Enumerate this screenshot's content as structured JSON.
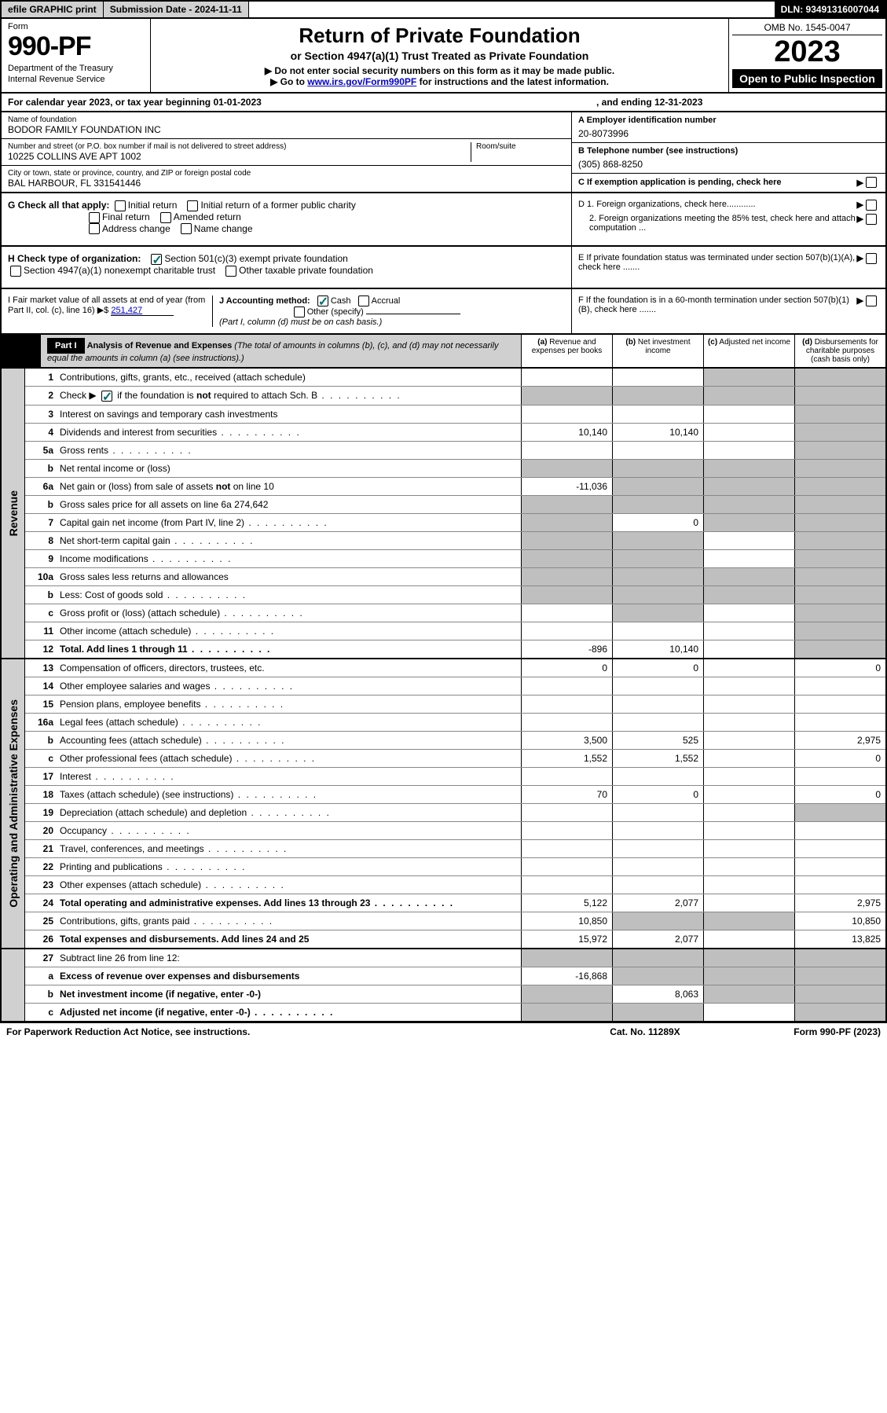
{
  "top_bar": {
    "efile": "efile GRAPHIC print",
    "submission": "Submission Date - 2024-11-11",
    "dln": "DLN: 93491316007044"
  },
  "header": {
    "form_label": "Form",
    "form_number": "990-PF",
    "dept1": "Department of the Treasury",
    "dept2": "Internal Revenue Service",
    "title": "Return of Private Foundation",
    "subtitle": "or Section 4947(a)(1) Trust Treated as Private Foundation",
    "note1": "▶ Do not enter social security numbers on this form as it may be made public.",
    "note2_prefix": "▶ Go to ",
    "note2_link": "www.irs.gov/Form990PF",
    "note2_suffix": " for instructions and the latest information.",
    "omb": "OMB No. 1545-0047",
    "year": "2023",
    "open": "Open to Public Inspection"
  },
  "calendar": {
    "text_a": "For calendar year 2023, or tax year beginning 01-01-2023",
    "text_b": ", and ending 12-31-2023"
  },
  "info": {
    "name_label": "Name of foundation",
    "name_value": "BODOR FAMILY FOUNDATION INC",
    "addr_label": "Number and street (or P.O. box number if mail is not delivered to street address)",
    "addr_value": "10225 COLLINS AVE APT 1002",
    "room_label": "Room/suite",
    "city_label": "City or town, state or province, country, and ZIP or foreign postal code",
    "city_value": "BAL HARBOUR, FL  331541446",
    "ein_label": "A Employer identification number",
    "ein_value": "20-8073996",
    "phone_label": "B Telephone number (see instructions)",
    "phone_value": "(305) 868-8250",
    "c_label": "C If exemption application is pending, check here"
  },
  "checks": {
    "g_label": "G Check all that apply:",
    "g_opts": [
      "Initial return",
      "Initial return of a former public charity",
      "Final return",
      "Amended return",
      "Address change",
      "Name change"
    ],
    "h_label": "H Check type of organization:",
    "h_opt1": "Section 501(c)(3) exempt private foundation",
    "h_opt2": "Section 4947(a)(1) nonexempt charitable trust",
    "h_opt3": "Other taxable private foundation",
    "i_label": "I Fair market value of all assets at end of year (from Part II, col. (c), line 16) ▶$",
    "i_value": "251,427",
    "j_label": "J Accounting method:",
    "j_opt1": "Cash",
    "j_opt2": "Accrual",
    "j_opt3": "Other (specify)",
    "j_note": "(Part I, column (d) must be on cash basis.)",
    "d1": "D 1. Foreign organizations, check here............",
    "d2": "2. Foreign organizations meeting the 85% test, check here and attach computation ...",
    "e": "E  If private foundation status was terminated under section 507(b)(1)(A), check here .......",
    "f": "F  If the foundation is in a 60-month termination under section 507(b)(1)(B), check here ......."
  },
  "part1": {
    "label": "Part I",
    "title": "Analysis of Revenue and Expenses",
    "title_sub": "(The total of amounts in columns (b), (c), and (d) may not necessarily equal the amounts in column (a) (see instructions).)",
    "col_a": "(a) Revenue and expenses per books",
    "col_b": "(b) Net investment income",
    "col_c": "(c) Adjusted net income",
    "col_d": "(d) Disbursements for charitable purposes (cash basis only)"
  },
  "sections": {
    "revenue": "Revenue",
    "expenses": "Operating and Administrative Expenses"
  },
  "lines": [
    {
      "num": "1",
      "desc": "Contributions, gifts, grants, etc., received (attach schedule)",
      "a": "",
      "b": "",
      "c": "s",
      "d": "s"
    },
    {
      "num": "2",
      "desc": "Check ▶ ☑ if the foundation is not required to attach Sch. B",
      "a": "s",
      "b": "s",
      "c": "s",
      "d": "s",
      "dots": true
    },
    {
      "num": "3",
      "desc": "Interest on savings and temporary cash investments",
      "a": "",
      "b": "",
      "c": "",
      "d": "s"
    },
    {
      "num": "4",
      "desc": "Dividends and interest from securities",
      "a": "10,140",
      "b": "10,140",
      "c": "",
      "d": "s",
      "dots": true
    },
    {
      "num": "5a",
      "desc": "Gross rents",
      "a": "",
      "b": "",
      "c": "",
      "d": "s",
      "dots": true
    },
    {
      "num": "b",
      "desc": "Net rental income or (loss)",
      "a": "s",
      "b": "s",
      "c": "s",
      "d": "s"
    },
    {
      "num": "6a",
      "desc": "Net gain or (loss) from sale of assets not on line 10",
      "a": "-11,036",
      "b": "s",
      "c": "s",
      "d": "s"
    },
    {
      "num": "b",
      "desc": "Gross sales price for all assets on line 6a           274,642",
      "a": "s",
      "b": "s",
      "c": "s",
      "d": "s"
    },
    {
      "num": "7",
      "desc": "Capital gain net income (from Part IV, line 2)",
      "a": "s",
      "b": "0",
      "c": "s",
      "d": "s",
      "dots": true
    },
    {
      "num": "8",
      "desc": "Net short-term capital gain",
      "a": "s",
      "b": "s",
      "c": "",
      "d": "s",
      "dots": true
    },
    {
      "num": "9",
      "desc": "Income modifications",
      "a": "s",
      "b": "s",
      "c": "",
      "d": "s",
      "dots": true
    },
    {
      "num": "10a",
      "desc": "Gross sales less returns and allowances",
      "a": "s",
      "b": "s",
      "c": "s",
      "d": "s"
    },
    {
      "num": "b",
      "desc": "Less: Cost of goods sold",
      "a": "s",
      "b": "s",
      "c": "s",
      "d": "s",
      "dots": true
    },
    {
      "num": "c",
      "desc": "Gross profit or (loss) (attach schedule)",
      "a": "",
      "b": "s",
      "c": "",
      "d": "s",
      "dots": true
    },
    {
      "num": "11",
      "desc": "Other income (attach schedule)",
      "a": "",
      "b": "",
      "c": "",
      "d": "s",
      "dots": true
    },
    {
      "num": "12",
      "desc": "Total. Add lines 1 through 11",
      "a": "-896",
      "b": "10,140",
      "c": "",
      "d": "s",
      "bold": true,
      "dots": true
    }
  ],
  "exp_lines": [
    {
      "num": "13",
      "desc": "Compensation of officers, directors, trustees, etc.",
      "a": "0",
      "b": "0",
      "c": "",
      "d": "0"
    },
    {
      "num": "14",
      "desc": "Other employee salaries and wages",
      "a": "",
      "b": "",
      "c": "",
      "d": "",
      "dots": true
    },
    {
      "num": "15",
      "desc": "Pension plans, employee benefits",
      "a": "",
      "b": "",
      "c": "",
      "d": "",
      "dots": true
    },
    {
      "num": "16a",
      "desc": "Legal fees (attach schedule)",
      "a": "",
      "b": "",
      "c": "",
      "d": "",
      "dots": true
    },
    {
      "num": "b",
      "desc": "Accounting fees (attach schedule)",
      "a": "3,500",
      "b": "525",
      "c": "",
      "d": "2,975",
      "dots": true
    },
    {
      "num": "c",
      "desc": "Other professional fees (attach schedule)",
      "a": "1,552",
      "b": "1,552",
      "c": "",
      "d": "0",
      "dots": true
    },
    {
      "num": "17",
      "desc": "Interest",
      "a": "",
      "b": "",
      "c": "",
      "d": "",
      "dots": true
    },
    {
      "num": "18",
      "desc": "Taxes (attach schedule) (see instructions)",
      "a": "70",
      "b": "0",
      "c": "",
      "d": "0",
      "dots": true
    },
    {
      "num": "19",
      "desc": "Depreciation (attach schedule) and depletion",
      "a": "",
      "b": "",
      "c": "",
      "d": "s",
      "dots": true
    },
    {
      "num": "20",
      "desc": "Occupancy",
      "a": "",
      "b": "",
      "c": "",
      "d": "",
      "dots": true
    },
    {
      "num": "21",
      "desc": "Travel, conferences, and meetings",
      "a": "",
      "b": "",
      "c": "",
      "d": "",
      "dots": true
    },
    {
      "num": "22",
      "desc": "Printing and publications",
      "a": "",
      "b": "",
      "c": "",
      "d": "",
      "dots": true
    },
    {
      "num": "23",
      "desc": "Other expenses (attach schedule)",
      "a": "",
      "b": "",
      "c": "",
      "d": "",
      "dots": true
    },
    {
      "num": "24",
      "desc": "Total operating and administrative expenses. Add lines 13 through 23",
      "a": "5,122",
      "b": "2,077",
      "c": "",
      "d": "2,975",
      "bold": true,
      "dots": true
    },
    {
      "num": "25",
      "desc": "Contributions, gifts, grants paid",
      "a": "10,850",
      "b": "s",
      "c": "s",
      "d": "10,850",
      "dots": true
    },
    {
      "num": "26",
      "desc": "Total expenses and disbursements. Add lines 24 and 25",
      "a": "15,972",
      "b": "2,077",
      "c": "",
      "d": "13,825",
      "bold": true
    }
  ],
  "bottom_lines": [
    {
      "num": "27",
      "desc": "Subtract line 26 from line 12:",
      "a": "s",
      "b": "s",
      "c": "s",
      "d": "s"
    },
    {
      "num": "a",
      "desc": "Excess of revenue over expenses and disbursements",
      "a": "-16,868",
      "b": "s",
      "c": "s",
      "d": "s",
      "bold": true
    },
    {
      "num": "b",
      "desc": "Net investment income (if negative, enter -0-)",
      "a": "s",
      "b": "8,063",
      "c": "s",
      "d": "s",
      "bold": true
    },
    {
      "num": "c",
      "desc": "Adjusted net income (if negative, enter -0-)",
      "a": "s",
      "b": "s",
      "c": "",
      "d": "s",
      "bold": true,
      "dots": true
    }
  ],
  "footer": {
    "left": "For Paperwork Reduction Act Notice, see instructions.",
    "mid": "Cat. No. 11289X",
    "right": "Form 990-PF (2023)"
  }
}
